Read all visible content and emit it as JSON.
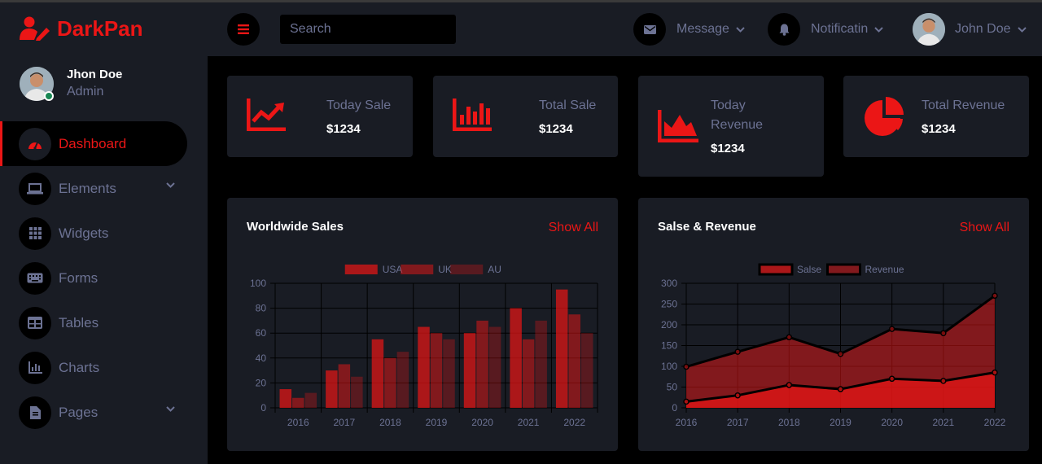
{
  "brand": {
    "name": "DarkPan"
  },
  "profile": {
    "name": "Jhon Doe",
    "role": "Admin"
  },
  "sidebar": {
    "items": [
      {
        "label": "Dashboard",
        "icon": "speedometer-icon",
        "active": true
      },
      {
        "label": "Elements",
        "icon": "laptop-icon",
        "has_dropdown": true
      },
      {
        "label": "Widgets",
        "icon": "grid-icon"
      },
      {
        "label": "Forms",
        "icon": "keyboard-icon"
      },
      {
        "label": "Tables",
        "icon": "table-icon"
      },
      {
        "label": "Charts",
        "icon": "chart-bar-icon"
      },
      {
        "label": "Pages",
        "icon": "file-icon",
        "has_dropdown": true
      }
    ]
  },
  "topbar": {
    "search_placeholder": "Search",
    "message_label": "Message",
    "notification_label": "Notificatin",
    "user_name": "John Doe"
  },
  "stats": [
    {
      "label": "Today Sale",
      "value": "$1234",
      "icon": "chart-line-icon"
    },
    {
      "label": "Total Sale",
      "value": "$1234",
      "icon": "chart-bar-icon"
    },
    {
      "label": "Today Revenue",
      "value": "$1234",
      "icon": "chart-area-icon"
    },
    {
      "label": "Total Revenue",
      "value": "$1234",
      "icon": "chart-pie-icon"
    }
  ],
  "panels": {
    "worldwide": {
      "title": "Worldwide Sales",
      "link": "Show All"
    },
    "revenue": {
      "title": "Salse & Revenue",
      "link": "Show All"
    }
  },
  "colors": {
    "accent": "#EB1616",
    "panel": "#191C24",
    "muted": "#6C7293"
  },
  "chart_data": [
    {
      "type": "bar",
      "categories": [
        "2016",
        "2017",
        "2018",
        "2019",
        "2020",
        "2021",
        "2022"
      ],
      "series": [
        {
          "name": "USA",
          "values": [
            15,
            30,
            55,
            65,
            60,
            80,
            95
          ],
          "color": "rgba(235,22,22,0.7)"
        },
        {
          "name": "UK",
          "values": [
            8,
            35,
            40,
            60,
            70,
            55,
            75
          ],
          "color": "rgba(235,22,22,0.5)"
        },
        {
          "name": "AU",
          "values": [
            12,
            25,
            45,
            55,
            65,
            70,
            60
          ],
          "color": "rgba(235,22,22,0.3)"
        }
      ],
      "ylim": [
        0,
        100
      ],
      "yticks": [
        0,
        20,
        40,
        60,
        80,
        100
      ],
      "legend": "top-center",
      "grid": true
    },
    {
      "type": "area",
      "categories": [
        "2016",
        "2017",
        "2018",
        "2019",
        "2020",
        "2021",
        "2022"
      ],
      "series": [
        {
          "name": "Salse",
          "values": [
            15,
            30,
            55,
            45,
            70,
            65,
            85
          ],
          "color": "rgba(235,22,22,0.7)"
        },
        {
          "name": "Revenue",
          "values": [
            99,
            135,
            170,
            130,
            190,
            180,
            270
          ],
          "color": "rgba(235,22,22,0.5)"
        }
      ],
      "ylim": [
        0,
        300
      ],
      "yticks": [
        0,
        50,
        100,
        150,
        200,
        250,
        300
      ],
      "legend": "top-center",
      "grid": true
    }
  ]
}
